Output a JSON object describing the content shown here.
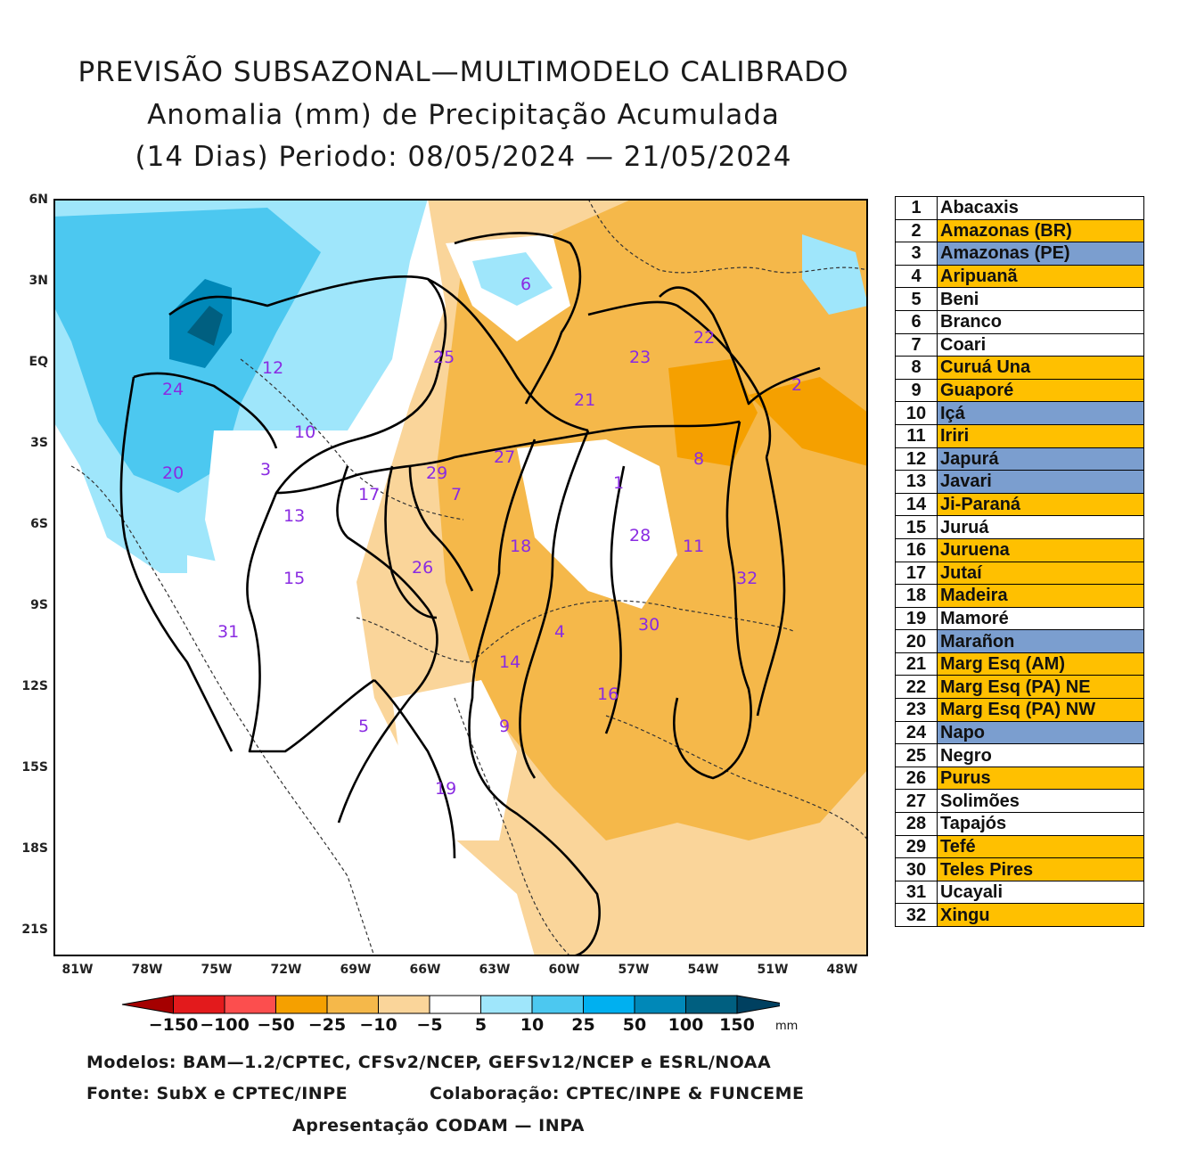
{
  "title": {
    "line1": "PREVISÃO SUBSAZONAL—MULTIMODELO CALIBRADO",
    "line2": "Anomalia (mm) de Precipitação Acumulada",
    "line3": "(14 Dias) Periodo: 08/05/2024 — 21/05/2024"
  },
  "axes": {
    "lat_labels": [
      "6N",
      "3N",
      "EQ",
      "3S",
      "6S",
      "9S",
      "12S",
      "15S",
      "18S",
      "21S"
    ],
    "lon_labels": [
      "81W",
      "78W",
      "75W",
      "72W",
      "69W",
      "66W",
      "63W",
      "60W",
      "57W",
      "54W",
      "51W",
      "48W"
    ]
  },
  "basin_labels": [
    "1",
    "2",
    "3",
    "4",
    "5",
    "6",
    "7",
    "8",
    "9",
    "10",
    "11",
    "12",
    "13",
    "14",
    "15",
    "16",
    "17",
    "18",
    "19",
    "20",
    "21",
    "22",
    "23",
    "24",
    "25",
    "26",
    "27",
    "28",
    "29",
    "30",
    "31",
    "32"
  ],
  "legend": {
    "rows": [
      {
        "num": "1",
        "name": "Abacaxis",
        "color": "#ffffff"
      },
      {
        "num": "2",
        "name": "Amazonas (BR)",
        "color": "#ffc000"
      },
      {
        "num": "3",
        "name": "Amazonas (PE)",
        "color": "#7b9ecf"
      },
      {
        "num": "4",
        "name": "Aripuanã",
        "color": "#ffc000"
      },
      {
        "num": "5",
        "name": "Beni",
        "color": "#ffffff"
      },
      {
        "num": "6",
        "name": "Branco",
        "color": "#ffffff"
      },
      {
        "num": "7",
        "name": "Coari",
        "color": "#ffffff"
      },
      {
        "num": "8",
        "name": "Curuá Una",
        "color": "#ffc000"
      },
      {
        "num": "9",
        "name": "Guaporé",
        "color": "#ffc000"
      },
      {
        "num": "10",
        "name": "Içá",
        "color": "#7b9ecf"
      },
      {
        "num": "11",
        "name": "Iriri",
        "color": "#ffc000"
      },
      {
        "num": "12",
        "name": "Japurá",
        "color": "#7b9ecf"
      },
      {
        "num": "13",
        "name": "Javari",
        "color": "#7b9ecf"
      },
      {
        "num": "14",
        "name": "Ji-Paraná",
        "color": "#ffc000"
      },
      {
        "num": "15",
        "name": "Juruá",
        "color": "#ffffff"
      },
      {
        "num": "16",
        "name": "Juruena",
        "color": "#ffc000"
      },
      {
        "num": "17",
        "name": "Jutaí",
        "color": "#ffc000"
      },
      {
        "num": "18",
        "name": "Madeira",
        "color": "#ffc000"
      },
      {
        "num": "19",
        "name": "Mamoré",
        "color": "#ffffff"
      },
      {
        "num": "20",
        "name": "Marañon",
        "color": "#7b9ecf"
      },
      {
        "num": "21",
        "name": "Marg Esq (AM)",
        "color": "#ffc000"
      },
      {
        "num": "22",
        "name": "Marg Esq (PA) NE",
        "color": "#ffc000"
      },
      {
        "num": "23",
        "name": "Marg Esq (PA) NW",
        "color": "#ffc000"
      },
      {
        "num": "24",
        "name": "Napo",
        "color": "#7b9ecf"
      },
      {
        "num": "25",
        "name": "Negro",
        "color": "#ffffff"
      },
      {
        "num": "26",
        "name": "Purus",
        "color": "#ffc000"
      },
      {
        "num": "27",
        "name": "Solimões",
        "color": "#ffffff"
      },
      {
        "num": "28",
        "name": "Tapajós",
        "color": "#ffffff"
      },
      {
        "num": "29",
        "name": "Tefé",
        "color": "#ffc000"
      },
      {
        "num": "30",
        "name": "Teles Pires",
        "color": "#ffc000"
      },
      {
        "num": "31",
        "name": "Ucayali",
        "color": "#ffffff"
      },
      {
        "num": "32",
        "name": "Xingu",
        "color": "#ffc000"
      }
    ]
  },
  "colorbar": {
    "labels": [
      "−150",
      "−100",
      "−50",
      "−25",
      "−10",
      "−5",
      "5",
      "10",
      "25",
      "50",
      "100",
      "150"
    ],
    "colors": [
      "#a50000",
      "#e31a1c",
      "#fc4e4e",
      "#f5a000",
      "#f5b84a",
      "#fad59a",
      "#ffffff",
      "#9fe6fb",
      "#4cc8f0",
      "#00b0f0",
      "#0088b8",
      "#005f80",
      "#004060"
    ],
    "unit": "mm"
  },
  "footer": {
    "models": "Modelos: BAM—1.2/CPTEC, CFSv2/NCEP, GEFSv12/NCEP e ESRL/NOAA",
    "source": "Fonte: SubX e CPTEC/INPE",
    "collab": "Colaboração: CPTEC/INPE & FUNCEME",
    "presentation": "Apresentação CODAM — INPA"
  }
}
